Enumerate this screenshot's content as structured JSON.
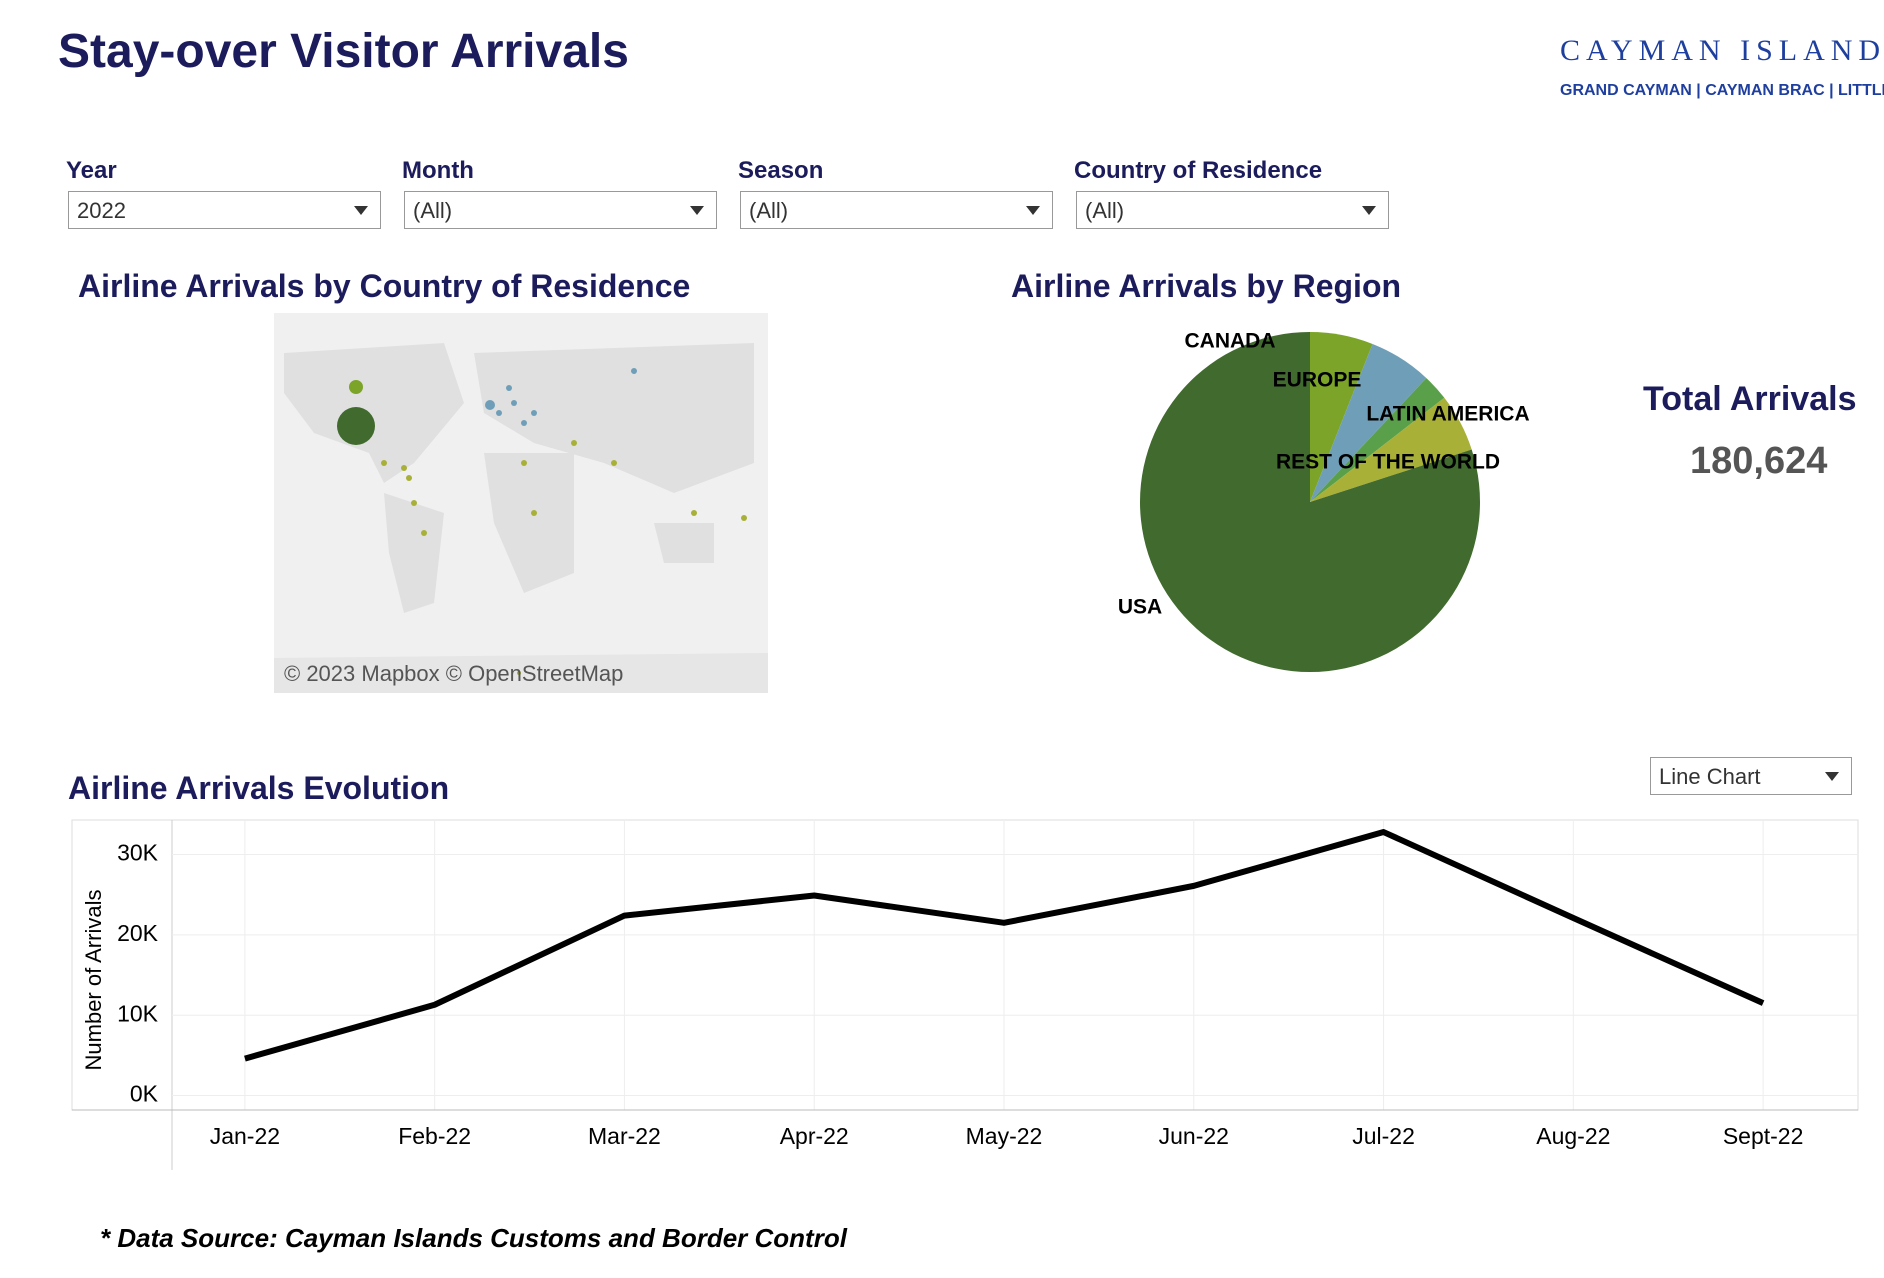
{
  "header": {
    "title": "Stay-over Visitor Arrivals",
    "logo_name": "CAYMAN ISLANDS",
    "logo_subtitle": "GRAND CAYMAN | CAYMAN BRAC | LITTLE CAYMAN"
  },
  "filters": [
    {
      "label": "Year",
      "value": "2022"
    },
    {
      "label": "Month",
      "value": "(All)"
    },
    {
      "label": "Season",
      "value": "(All)"
    },
    {
      "label": "Country of Residence",
      "value": "(All)"
    }
  ],
  "map": {
    "title": "Airline Arrivals by Country of Residence",
    "attribution": "© 2023 Mapbox  © OpenStreetMap"
  },
  "total": {
    "label": "Total Arrivals",
    "value": "180,624"
  },
  "chart_selector": "Line Chart",
  "footer": "* Data Source: Cayman Islands Customs and Border Control",
  "chart_data": [
    {
      "type": "pie",
      "title": "Airline Arrivals by Region",
      "categories": [
        "CANADA",
        "EUROPE",
        "LATIN AMERICA",
        "REST OF THE WORLD",
        "USA"
      ],
      "values": [
        6,
        6,
        2.5,
        5.5,
        80
      ],
      "colors": [
        "#7ba428",
        "#6f9fb8",
        "#5aa04a",
        "#a8b038",
        "#416a2e"
      ]
    },
    {
      "type": "line",
      "title": "Airline Arrivals Evolution",
      "y_label": "Number of Arrivals",
      "categories": [
        "Jan-22",
        "Feb-22",
        "Mar-22",
        "Apr-22",
        "May-22",
        "Jun-22",
        "Jul-22",
        "Aug-22",
        "Sept-22"
      ],
      "series": [
        {
          "name": "Arrivals",
          "color": "#000000",
          "values": [
            4600,
            11300,
            22400,
            24900,
            21500,
            26100,
            32800,
            22100,
            11500
          ]
        }
      ],
      "ylim": [
        -1800,
        34300
      ],
      "yticks": [
        {
          "value": 0,
          "label": "0K"
        },
        {
          "value": 10000,
          "label": "10K"
        },
        {
          "value": 20000,
          "label": "20K"
        },
        {
          "value": 30000,
          "label": "30K"
        }
      ],
      "grid": true
    }
  ]
}
